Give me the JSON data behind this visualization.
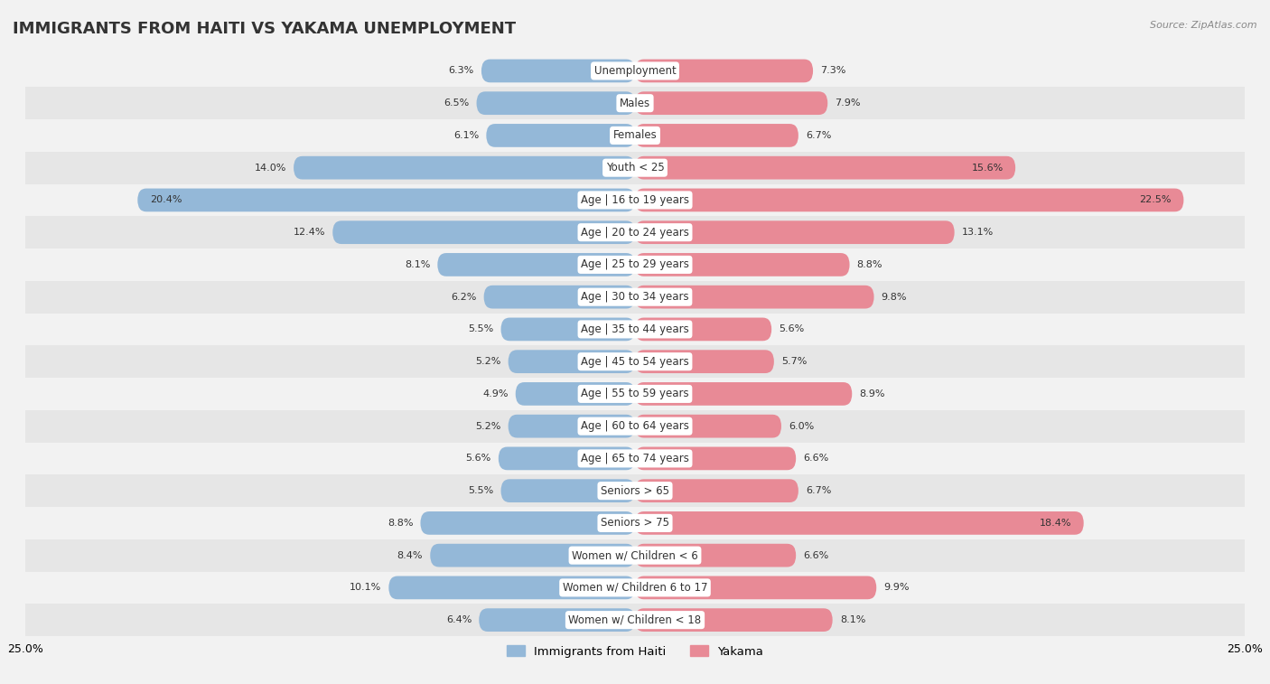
{
  "title": "IMMIGRANTS FROM HAITI VS YAKAMA UNEMPLOYMENT",
  "source": "Source: ZipAtlas.com",
  "categories": [
    "Unemployment",
    "Males",
    "Females",
    "Youth < 25",
    "Age | 16 to 19 years",
    "Age | 20 to 24 years",
    "Age | 25 to 29 years",
    "Age | 30 to 34 years",
    "Age | 35 to 44 years",
    "Age | 45 to 54 years",
    "Age | 55 to 59 years",
    "Age | 60 to 64 years",
    "Age | 65 to 74 years",
    "Seniors > 65",
    "Seniors > 75",
    "Women w/ Children < 6",
    "Women w/ Children 6 to 17",
    "Women w/ Children < 18"
  ],
  "haiti_values": [
    6.3,
    6.5,
    6.1,
    14.0,
    20.4,
    12.4,
    8.1,
    6.2,
    5.5,
    5.2,
    4.9,
    5.2,
    5.6,
    5.5,
    8.8,
    8.4,
    10.1,
    6.4
  ],
  "yakama_values": [
    7.3,
    7.9,
    6.7,
    15.6,
    22.5,
    13.1,
    8.8,
    9.8,
    5.6,
    5.7,
    8.9,
    6.0,
    6.6,
    6.7,
    18.4,
    6.6,
    9.9,
    8.1
  ],
  "haiti_color": "#94b8d8",
  "yakama_color": "#e88a96",
  "axis_max": 25.0,
  "bg_light": "#f2f2f2",
  "bg_dark": "#e6e6e6",
  "bar_height": 0.72,
  "title_fontsize": 13,
  "label_fontsize": 8.5,
  "value_fontsize": 8.0,
  "tick_fontsize": 9.0
}
